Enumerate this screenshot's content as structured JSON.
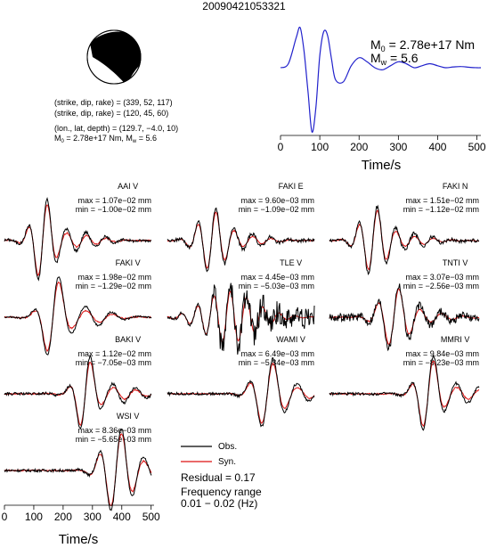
{
  "title": "20090421053321",
  "colors": {
    "observed": "#000000",
    "synthetic": "#dd1111",
    "source_time_function": "#2222cc"
  },
  "mechanism": {
    "line1": "(strike, dip, rake) = (339, 52, 117)",
    "line2": "(strike, dip, rake) = (120, 45, 60)",
    "line3": "(lon., lat, depth) = (129.7, −4.0, 10)",
    "line4_prefix": "M",
    "line4_sub": "0",
    "line4_rest": " = 2.78e+17 Nm, M",
    "line4_sub2": "w",
    "line4_tail": " = 5.6"
  },
  "stf_panel": {
    "m0_prefix": "M",
    "m0_sub": "0",
    "m0_value": " = 2.78e+17 Nm",
    "mw_prefix": "M",
    "mw_sub": "w",
    "mw_value": " = 5.6",
    "xlabel": "Time/s",
    "xticks": [
      "0",
      "100",
      "200",
      "300",
      "400",
      "500"
    ]
  },
  "bottom_axis": {
    "xlabel": "Time/s",
    "xticks": [
      "0",
      "100",
      "200",
      "300",
      "400",
      "500"
    ]
  },
  "legend": {
    "obs": "Obs.",
    "syn": "Syn."
  },
  "residual": "Residual = 0.17",
  "frequency_label": "Frequency range",
  "frequency_value": "0.01 − 0.02 (Hz)",
  "chart_data": [
    {
      "type": "line",
      "title": "",
      "xlabel": "Time/s",
      "ylabel": "",
      "xlim": [
        0,
        510
      ],
      "x": [
        0,
        20,
        40,
        50,
        60,
        70,
        80,
        90,
        100,
        110,
        120,
        130,
        140,
        160,
        180,
        200,
        220,
        240,
        260,
        280,
        300,
        320,
        340,
        360,
        380,
        400,
        420,
        440,
        460,
        480,
        500,
        510
      ],
      "series": [
        {
          "values": [
            0.0,
            0.1,
            0.75,
            1.0,
            0.4,
            -0.6,
            -1.6,
            -1.0,
            0.3,
            0.9,
            0.8,
            0.2,
            -0.3,
            -0.35,
            0.05,
            0.25,
            0.15,
            0.0,
            -0.05,
            0.05,
            0.15,
            0.1,
            0.0,
            0.05,
            0.1,
            0.05,
            0.0,
            0.02,
            0.03,
            0.01,
            0.0,
            0.0
          ]
        }
      ]
    },
    {
      "type": "line",
      "title": "AAI V",
      "max": "max = 1.07e−02 mm",
      "min": "min = −1.00e−02 mm",
      "series": [
        {
          "name": "Obs."
        },
        {
          "name": "Syn."
        }
      ]
    },
    {
      "type": "line",
      "title": "FAKI E",
      "max": "max = 9.60e−03 mm",
      "min": "min = −1.09e−02 mm",
      "series": [
        {
          "name": "Obs."
        },
        {
          "name": "Syn."
        }
      ]
    },
    {
      "type": "line",
      "title": "FAKI N",
      "max": "max = 1.51e−02 mm",
      "min": "min = −1.12e−02 mm",
      "series": [
        {
          "name": "Obs."
        },
        {
          "name": "Syn."
        }
      ]
    },
    {
      "type": "line",
      "title": "FAKI V",
      "max": "max = 1.98e−02 mm",
      "min": "min = −1.29e−02 mm",
      "series": [
        {
          "name": "Obs."
        },
        {
          "name": "Syn."
        }
      ]
    },
    {
      "type": "line",
      "title": "TLE V",
      "max": "max = 4.45e−03 mm",
      "min": "min = −5.03e−03 mm",
      "series": [
        {
          "name": "Obs."
        },
        {
          "name": "Syn."
        }
      ]
    },
    {
      "type": "line",
      "title": "TNTI V",
      "max": "max = 3.07e−03 mm",
      "min": "min = −2.56e−03 mm",
      "series": [
        {
          "name": "Obs."
        },
        {
          "name": "Syn."
        }
      ]
    },
    {
      "type": "line",
      "title": "BAKI V",
      "max": "max = 1.12e−02 mm",
      "min": "min = −7.05e−03 mm",
      "series": [
        {
          "name": "Obs."
        },
        {
          "name": "Syn."
        }
      ]
    },
    {
      "type": "line",
      "title": "WAMI V",
      "max": "max = 6.49e−03 mm",
      "min": "min = −5.84e−03 mm",
      "series": [
        {
          "name": "Obs."
        },
        {
          "name": "Syn."
        }
      ]
    },
    {
      "type": "line",
      "title": "MMRI V",
      "max": "max = 9.84e−03 mm",
      "min": "min = −8.23e−03 mm",
      "series": [
        {
          "name": "Obs."
        },
        {
          "name": "Syn."
        }
      ]
    },
    {
      "type": "line",
      "title": "WSI V",
      "max": "max = 8.36e−03 mm",
      "min": "min = −5.65e−03 mm",
      "series": [
        {
          "name": "Obs."
        },
        {
          "name": "Syn."
        }
      ]
    }
  ]
}
